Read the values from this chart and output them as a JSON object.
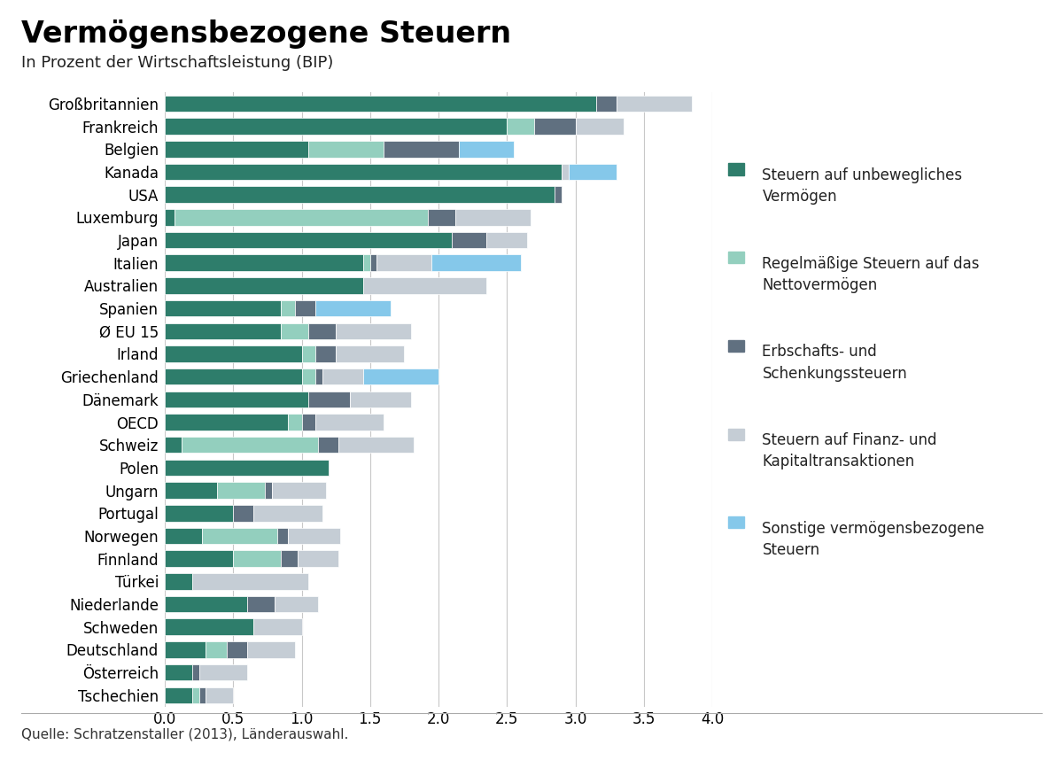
{
  "title": "Vermögensbezogene Steuern",
  "subtitle": "In Prozent der Wirtschaftsleistung (BIP)",
  "source": "Quelle: Schratzenstaller (2013), Länderauswahl.",
  "countries": [
    "Großbritannien",
    "Frankreich",
    "Belgien",
    "Kanada",
    "USA",
    "Luxemburg",
    "Japan",
    "Italien",
    "Australien",
    "Spanien",
    "Ø EU 15",
    "Irland",
    "Griechenland",
    "Dänemark",
    "OECD",
    "Schweiz",
    "Polen",
    "Ungarn",
    "Portugal",
    "Norwegen",
    "Finnland",
    "Türkei",
    "Niederlande",
    "Schweden",
    "Deutschland",
    "Österreich",
    "Tschechien"
  ],
  "legend_labels": [
    "Steuern auf unbewegliches\nVermögen",
    "Regelmäßige Steuern auf das\nNettovermögen",
    "Erbschafts- und\nSchenkungssteuern",
    "Steuern auf Finanz- und\nKapitaltransaktionen",
    "Sonstige vermögensbezogene\nSteuern"
  ],
  "colors": [
    "#2e7d6b",
    "#93cfbe",
    "#607080",
    "#c5cdd5",
    "#85c8ea"
  ],
  "data": {
    "Großbritannien": [
      3.15,
      0.0,
      0.15,
      0.55,
      0.0
    ],
    "Frankreich": [
      2.5,
      0.2,
      0.3,
      0.35,
      0.0
    ],
    "Belgien": [
      1.05,
      0.55,
      0.55,
      0.0,
      0.4
    ],
    "Kanada": [
      2.9,
      0.0,
      0.0,
      0.05,
      0.35
    ],
    "USA": [
      2.85,
      0.0,
      0.05,
      0.0,
      0.0
    ],
    "Luxemburg": [
      0.07,
      1.85,
      0.2,
      0.55,
      0.0
    ],
    "Japan": [
      2.1,
      0.0,
      0.25,
      0.3,
      0.0
    ],
    "Italien": [
      1.45,
      0.05,
      0.05,
      0.4,
      0.65
    ],
    "Australien": [
      1.45,
      0.0,
      0.0,
      0.9,
      0.0
    ],
    "Spanien": [
      0.85,
      0.1,
      0.15,
      0.0,
      0.55
    ],
    "Ø EU 15": [
      0.85,
      0.2,
      0.2,
      0.55,
      0.0
    ],
    "Irland": [
      1.0,
      0.1,
      0.15,
      0.5,
      0.0
    ],
    "Griechenland": [
      1.0,
      0.1,
      0.05,
      0.3,
      0.55
    ],
    "Dänemark": [
      1.05,
      0.0,
      0.3,
      0.45,
      0.0
    ],
    "OECD": [
      0.9,
      0.1,
      0.1,
      0.5,
      0.0
    ],
    "Schweiz": [
      0.12,
      1.0,
      0.15,
      0.55,
      0.0
    ],
    "Polen": [
      1.2,
      0.0,
      0.0,
      0.0,
      0.0
    ],
    "Ungarn": [
      0.38,
      0.35,
      0.05,
      0.4,
      0.0
    ],
    "Portugal": [
      0.5,
      0.0,
      0.15,
      0.5,
      0.0
    ],
    "Norwegen": [
      0.27,
      0.55,
      0.08,
      0.38,
      0.0
    ],
    "Finnland": [
      0.5,
      0.35,
      0.12,
      0.3,
      0.0
    ],
    "Türkei": [
      0.2,
      0.0,
      0.0,
      0.85,
      0.0
    ],
    "Niederlande": [
      0.6,
      0.0,
      0.2,
      0.32,
      0.0
    ],
    "Schweden": [
      0.65,
      0.0,
      0.0,
      0.35,
      0.0
    ],
    "Deutschland": [
      0.3,
      0.15,
      0.15,
      0.35,
      0.0
    ],
    "Österreich": [
      0.2,
      0.0,
      0.05,
      0.35,
      0.0
    ],
    "Tschechien": [
      0.2,
      0.05,
      0.05,
      0.2,
      0.0
    ]
  },
  "xlim": [
    0,
    4.0
  ],
  "xticks": [
    0.0,
    0.5,
    1.0,
    1.5,
    2.0,
    2.5,
    3.0,
    3.5,
    4.0
  ],
  "background_color": "#ffffff",
  "title_fontsize": 24,
  "subtitle_fontsize": 13,
  "tick_fontsize": 12,
  "ytick_fontsize": 12,
  "legend_fontsize": 12,
  "source_fontsize": 11
}
